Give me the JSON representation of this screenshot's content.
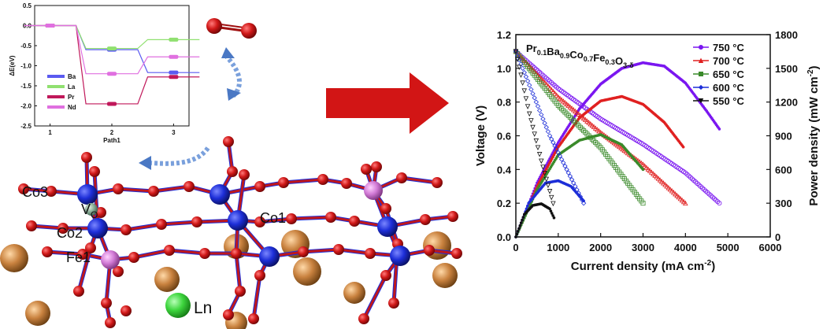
{
  "colors": {
    "oxygen": "#c0171b",
    "cobalt": "#1d2ed8",
    "iron": "#d27bd6",
    "ln": "#3ed63e",
    "a_site": "#c9823f",
    "arrow_red": "#d21515",
    "arrow_blue": "#4a78c4"
  },
  "icons": {
    "o2_molecule": "o2-molecule-icon",
    "curved_arrow_down": "blue-curved-arrow-icon",
    "curved_arrow_left": "blue-curved-arrow-icon",
    "big_arrow": "red-arrow-icon"
  },
  "structure": {
    "labels": {
      "co3": "Co3",
      "vo_main": "V",
      "vo_sub": "O",
      "co2": "Co2",
      "fe1": "Fe1",
      "co1": "Co1",
      "ln": "Ln"
    }
  },
  "chart_data": [
    {
      "type": "line",
      "title": "",
      "xlabel": "Path1",
      "ylabel": "ΔE(eV)",
      "xlim": [
        0.75,
        3.25
      ],
      "ylim": [
        -2.5,
        0.5
      ],
      "x_ticks": [
        1,
        2,
        3
      ],
      "y_ticks": [
        0.5,
        0.0,
        -0.5,
        -1.0,
        -1.5,
        -2.0,
        -2.5
      ],
      "y_tick_labels": [
        "0.5",
        "0.0",
        "-0.5",
        "-1.0",
        "-1.5",
        "-2.0",
        "-2.5"
      ],
      "legend_position": "left",
      "series": [
        {
          "name": "Ba",
          "color": "#5a5af0",
          "levels": [
            0.0,
            -0.6,
            -1.17
          ]
        },
        {
          "name": "La",
          "color": "#90e070",
          "levels": [
            0.0,
            -0.57,
            -0.35
          ]
        },
        {
          "name": "Pr",
          "color": "#c0185a",
          "levels": [
            0.0,
            -1.95,
            -1.28
          ]
        },
        {
          "name": "Nd",
          "color": "#e070e0",
          "levels": [
            0.0,
            -1.2,
            -0.78
          ]
        }
      ]
    },
    {
      "type": "line",
      "title": "Pr0.1Ba0.9Co0.7Fe0.3O3-δ",
      "title_parts": {
        "a": "Pr",
        "a_sub": "0.1",
        "b": "Ba",
        "b_sub": "0.9",
        "c": "Co",
        "c_sub": "0.7",
        "d": "Fe",
        "d_sub": "0.3",
        "e": "O",
        "e_sub": "3-δ"
      },
      "xlabel": "Current density (mA cm",
      "xlabel_sup": "-2",
      "xlabel_end": ")",
      "ylabel": "Voltage (V)",
      "y2label": "Power density (mW cm",
      "y2label_sup": "-2",
      "y2label_end": ")",
      "xlim": [
        0,
        6000
      ],
      "ylim": [
        0,
        1.2
      ],
      "y2lim": [
        0,
        1800
      ],
      "x_ticks": [
        0,
        1000,
        2000,
        3000,
        4000,
        5000,
        6000
      ],
      "y_ticks": [
        0.0,
        0.2,
        0.4,
        0.6,
        0.8,
        1.0,
        1.2
      ],
      "y_tick_labels": [
        "0.0",
        "0.2",
        "0.4",
        "0.6",
        "0.8",
        "1.0",
        "1.2"
      ],
      "y2_ticks": [
        0,
        300,
        600,
        900,
        1200,
        1500,
        1800
      ],
      "legend_position": "top-right",
      "series": [
        {
          "name": "750 °C",
          "color": "#7a16f0",
          "marker": "circle",
          "v_points": [
            [
              0,
              1.1
            ],
            [
              1000,
              0.88
            ],
            [
              2000,
              0.7
            ],
            [
              3000,
              0.55
            ],
            [
              4000,
              0.38
            ],
            [
              4800,
              0.2
            ]
          ],
          "p_points": [
            [
              0,
              0
            ],
            [
              500,
              480
            ],
            [
              1000,
              840
            ],
            [
              1500,
              1140
            ],
            [
              2000,
              1360
            ],
            [
              2500,
              1500
            ],
            [
              3000,
              1550
            ],
            [
              3500,
              1520
            ],
            [
              4000,
              1370
            ],
            [
              4500,
              1120
            ],
            [
              4800,
              960
            ]
          ]
        },
        {
          "name": "700 °C",
          "color": "#e02020",
          "marker": "triangle",
          "v_points": [
            [
              0,
              1.1
            ],
            [
              1000,
              0.83
            ],
            [
              2000,
              0.62
            ],
            [
              3000,
              0.43
            ],
            [
              4000,
              0.2
            ]
          ],
          "p_points": [
            [
              0,
              0
            ],
            [
              500,
              450
            ],
            [
              1000,
              800
            ],
            [
              1500,
              1060
            ],
            [
              2000,
              1210
            ],
            [
              2500,
              1250
            ],
            [
              3000,
              1180
            ],
            [
              3500,
              1020
            ],
            [
              3950,
              800
            ]
          ]
        },
        {
          "name": "650 °C",
          "color": "#3a8a2a",
          "marker": "square",
          "v_points": [
            [
              0,
              1.1
            ],
            [
              1000,
              0.78
            ],
            [
              2000,
              0.53
            ],
            [
              3000,
              0.2
            ]
          ],
          "p_points": [
            [
              0,
              0
            ],
            [
              500,
              420
            ],
            [
              1000,
              730
            ],
            [
              1500,
              860
            ],
            [
              2000,
              910
            ],
            [
              2500,
              820
            ],
            [
              3000,
              600
            ]
          ]
        },
        {
          "name": "600 °C",
          "color": "#1d2ed8",
          "marker": "diamond",
          "v_points": [
            [
              0,
              1.1
            ],
            [
              800,
              0.6
            ],
            [
              1600,
              0.2
            ]
          ],
          "p_points": [
            [
              0,
              0
            ],
            [
              300,
              300
            ],
            [
              700,
              480
            ],
            [
              1000,
              500
            ],
            [
              1300,
              450
            ],
            [
              1600,
              320
            ]
          ]
        },
        {
          "name": "550 °C",
          "color": "#111111",
          "marker": "triangle-down",
          "v_points": [
            [
              0,
              1.1
            ],
            [
              300,
              0.75
            ],
            [
              600,
              0.45
            ],
            [
              900,
              0.18
            ]
          ],
          "p_points": [
            [
              0,
              0
            ],
            [
              200,
              200
            ],
            [
              400,
              280
            ],
            [
              600,
              295
            ],
            [
              800,
              250
            ],
            [
              900,
              170
            ]
          ]
        }
      ]
    }
  ]
}
